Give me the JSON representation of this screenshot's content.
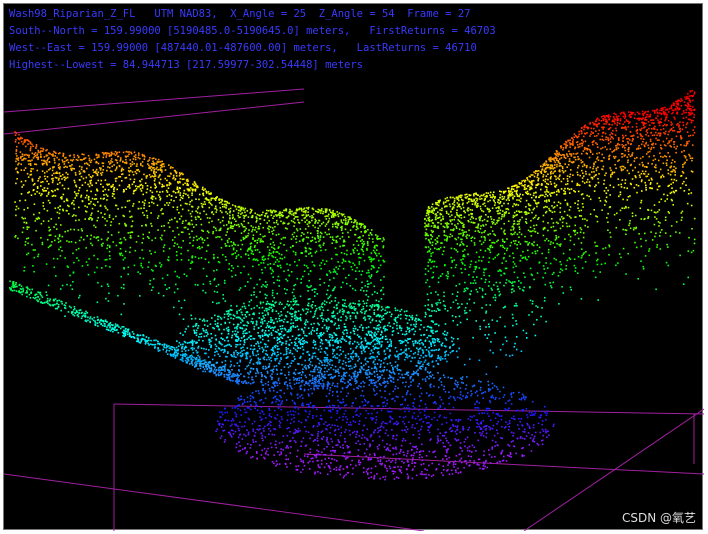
{
  "header": {
    "lines": [
      "Wash98_Riparian_Z_FL   UTM NAD83,  X_Angle = 25  Z_Angle = 54  Frame = 27",
      "South--North = 159.99000 [5190485.0-5190645.0] meters,   FirstReturns = 46703",
      "West--East = 159.99000 [487440.01-487600.00] meters,   LastReturns = 46710",
      "Highest--Lowest = 84.944713 [217.59977-302.54448] meters"
    ]
  },
  "watermark": "CSDN @氧艺"
}
